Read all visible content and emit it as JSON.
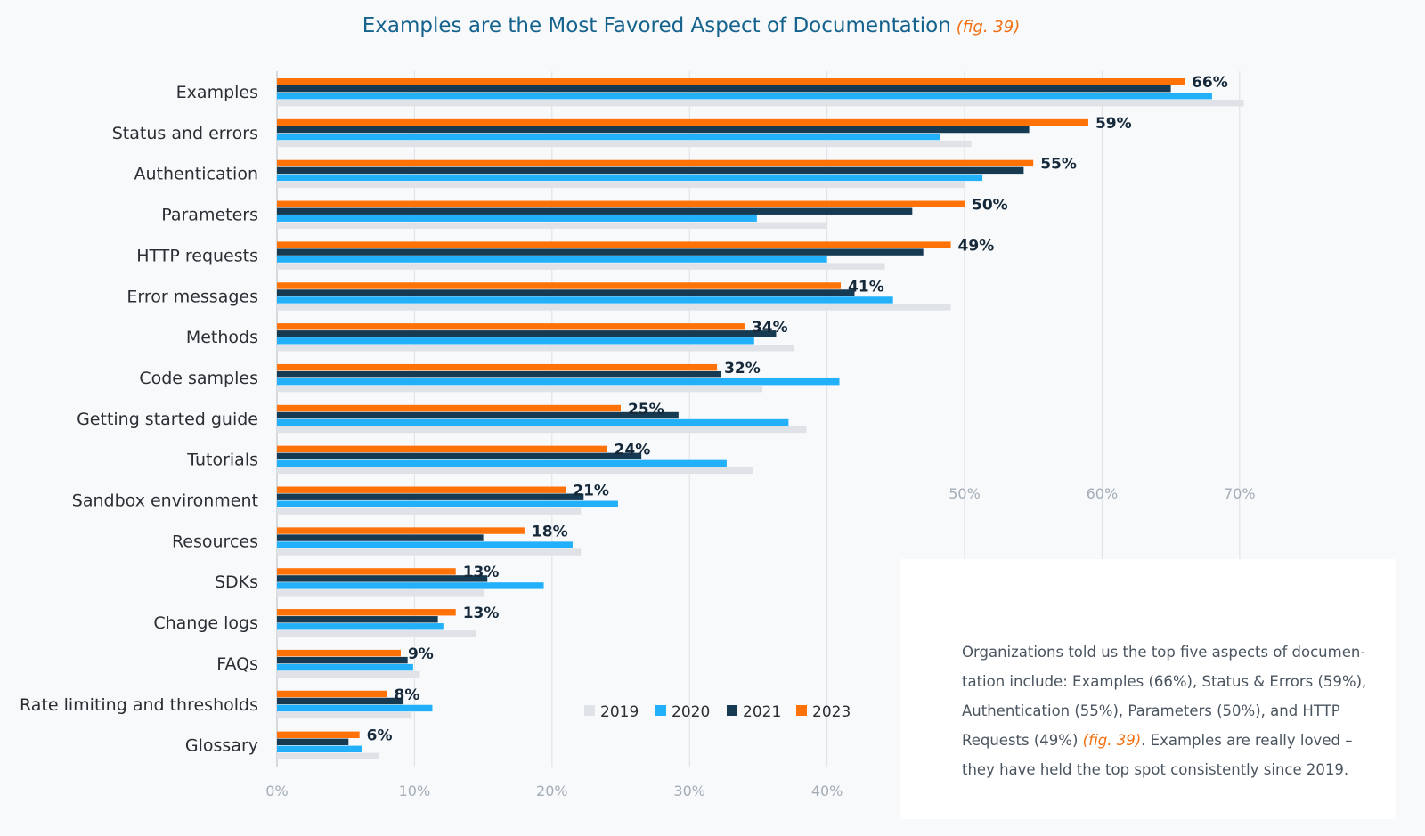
{
  "title": "Examples are the Most Favored Aspect of Documentation",
  "title_fig": "(fig. 39)",
  "note": {
    "text_before": "Organizations told us the top five aspects of documen-tation include: Examples (66%), Status & Errors (59%), Authentication (55%), Parameters (50%), and HTTP Requests (49%) ",
    "fig": "(fig. 39)",
    "text_after": ". Examples are really loved – they have held the top spot consistently since 2019."
  },
  "chart_data": {
    "type": "bar",
    "orientation": "horizontal",
    "title": "Examples are the Most Favored Aspect of Documentation",
    "xlim": [
      0,
      70
    ],
    "xticks": [
      "0%",
      "10%",
      "20%",
      "30%",
      "40%",
      "50%",
      "60%",
      "70%"
    ],
    "grid": true,
    "legend_placement": "bottom-center",
    "categories": [
      "Examples",
      "Status and errors",
      "Authentication",
      "Parameters",
      "HTTP requests",
      "Error messages",
      "Methods",
      "Code samples",
      "Getting started guide",
      "Tutorials",
      "Sandbox environment",
      "Resources",
      "SDKs",
      "Change logs",
      "FAQs",
      "Rate limiting and thresholds",
      "Glossary"
    ],
    "series": [
      {
        "name": "2023",
        "color": "#ff7208",
        "values": [
          66,
          59,
          55,
          50,
          49,
          41,
          34,
          32,
          25,
          24,
          21,
          18,
          13,
          13,
          9,
          8,
          6
        ]
      },
      {
        "name": "2021",
        "color": "#153a52",
        "values": [
          65,
          54.7,
          54.3,
          46.2,
          47,
          42,
          36.3,
          32.3,
          29.2,
          26.5,
          22.3,
          15,
          15.3,
          11.7,
          9.5,
          9.2,
          5.2
        ]
      },
      {
        "name": "2020",
        "color": "#22b0fa",
        "values": [
          68,
          48.2,
          51.3,
          34.9,
          40,
          44.8,
          34.7,
          40.9,
          37.2,
          32.7,
          24.8,
          21.5,
          19.4,
          12.1,
          9.9,
          11.3,
          6.2
        ]
      },
      {
        "name": "2019",
        "color": "#dfe3e7",
        "values": [
          70.3,
          50.5,
          50,
          40,
          44.2,
          49,
          37.6,
          35.3,
          38.5,
          34.6,
          22.1,
          22.1,
          15.1,
          14.5,
          10.4,
          9.8,
          7.4
        ]
      }
    ],
    "data_labels": [
      "66%",
      "59%",
      "55%",
      "50%",
      "49%",
      "41%",
      "34%",
      "32%",
      "25%",
      "24%",
      "21%",
      "18%",
      "13%",
      "13%",
      "9%",
      "8%",
      "6%"
    ],
    "legend_order": [
      "2019",
      "2020",
      "2021",
      "2023"
    ]
  }
}
